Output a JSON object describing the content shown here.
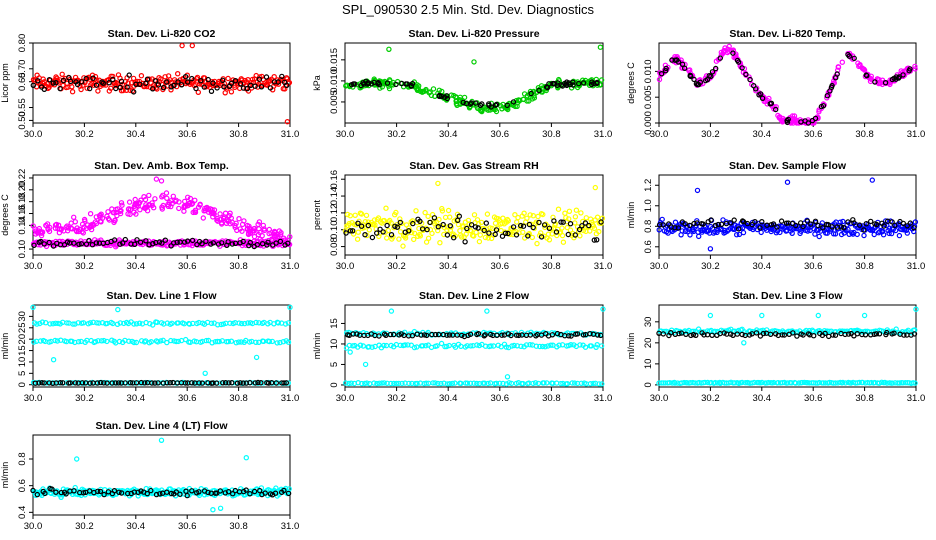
{
  "title": "SPL_090530  2.5 Min. Std. Dev. Diagnostics",
  "chart_data": [
    {
      "type": "scatter",
      "title": "Stan. Dev. Li-820 CO2",
      "ylabel": "Licor ppm",
      "xlim": [
        30.0,
        31.0
      ],
      "ylim": [
        0.49,
        0.8
      ],
      "xticks": [
        30.0,
        30.2,
        30.4,
        30.6,
        30.8,
        31.0
      ],
      "yticks": [
        0.5,
        0.55,
        0.65,
        0.7,
        0.8
      ],
      "ytick_labels": [
        "0.50",
        "0.55",
        "0.65",
        "0.70",
        "0.80"
      ],
      "color": "#ff0000",
      "series": [
        {
          "color": "#ff0000",
          "bands": [
            {
              "center": 0.645,
              "spread": 0.045
            }
          ],
          "outliers": [
            [
              30.58,
              0.79
            ],
            [
              30.62,
              0.79
            ],
            [
              30.99,
              0.495
            ]
          ]
        },
        {
          "color": "#000000",
          "bands": [
            {
              "center": 0.645,
              "spread": 0.04
            }
          ]
        }
      ]
    },
    {
      "type": "scatter",
      "title": "Stan. Dev. Li-820 Pressure",
      "ylabel": "kPa",
      "xlim": [
        30.0,
        31.0
      ],
      "ylim": [
        0.0,
        0.019
      ],
      "xticks": [
        30.0,
        30.2,
        30.4,
        30.6,
        30.8,
        31.0
      ],
      "yticks": [
        0.005,
        0.01,
        0.015
      ],
      "ytick_labels": [
        "0.005",
        "0.010",
        "0.015"
      ],
      "color": "#00cc00",
      "series": [
        {
          "color": "#00cc00",
          "curve": [
            [
              30.0,
              0.0085
            ],
            [
              30.1,
              0.0095
            ],
            [
              30.25,
              0.009
            ],
            [
              30.35,
              0.007
            ],
            [
              30.45,
              0.005
            ],
            [
              30.55,
              0.0035
            ],
            [
              30.62,
              0.0035
            ],
            [
              30.7,
              0.006
            ],
            [
              30.8,
              0.009
            ],
            [
              30.9,
              0.0095
            ],
            [
              31.0,
              0.0095
            ]
          ],
          "spread": 0.0015,
          "outliers": [
            [
              30.17,
              0.0175
            ],
            [
              30.5,
              0.0145
            ],
            [
              30.99,
              0.018
            ]
          ]
        },
        {
          "color": "#000000",
          "curve": [
            [
              30.0,
              0.0085
            ],
            [
              30.1,
              0.0095
            ],
            [
              30.25,
              0.009
            ],
            [
              30.35,
              0.007
            ],
            [
              30.45,
              0.005
            ],
            [
              30.55,
              0.004
            ],
            [
              30.62,
              0.004
            ],
            [
              30.7,
              0.006
            ],
            [
              30.8,
              0.009
            ],
            [
              30.9,
              0.0095
            ],
            [
              31.0,
              0.0095
            ]
          ],
          "spread": 0.0008
        }
      ]
    },
    {
      "type": "scatter",
      "title": "Stan. Dev. Li-820 Temp.",
      "ylabel": "degrees C",
      "xlim": [
        30.0,
        31.0
      ],
      "ylim": [
        0.0,
        0.0155
      ],
      "xticks": [
        30.0,
        30.2,
        30.4,
        30.6,
        30.8,
        31.0
      ],
      "yticks": [
        0.0,
        0.005,
        0.01
      ],
      "ytick_labels": [
        "0.000",
        "0.005",
        "0.010"
      ],
      "color": "#ff00ff",
      "series": [
        {
          "color": "#ff00ff",
          "curve": [
            [
              30.0,
              0.009
            ],
            [
              30.06,
              0.0125
            ],
            [
              30.1,
              0.011
            ],
            [
              30.15,
              0.0075
            ],
            [
              30.2,
              0.009
            ],
            [
              30.25,
              0.0135
            ],
            [
              30.28,
              0.0145
            ],
            [
              30.32,
              0.011
            ],
            [
              30.38,
              0.006
            ],
            [
              30.45,
              0.003
            ],
            [
              30.48,
              0.0005
            ],
            [
              30.6,
              0.0
            ],
            [
              30.63,
              0.0025
            ],
            [
              30.68,
              0.008
            ],
            [
              30.72,
              0.0135
            ],
            [
              30.76,
              0.0125
            ],
            [
              30.82,
              0.0085
            ],
            [
              30.88,
              0.0075
            ],
            [
              30.95,
              0.0095
            ],
            [
              31.0,
              0.011
            ]
          ],
          "spread": 0.0012
        },
        {
          "color": "#000000",
          "curve": [
            [
              30.0,
              0.009
            ],
            [
              30.06,
              0.0125
            ],
            [
              30.1,
              0.011
            ],
            [
              30.15,
              0.0075
            ],
            [
              30.2,
              0.009
            ],
            [
              30.25,
              0.0135
            ],
            [
              30.28,
              0.0145
            ],
            [
              30.32,
              0.011
            ],
            [
              30.38,
              0.006
            ],
            [
              30.45,
              0.003
            ],
            [
              30.48,
              0.0005
            ],
            [
              30.6,
              0.0
            ],
            [
              30.63,
              0.0025
            ],
            [
              30.68,
              0.008
            ],
            [
              30.72,
              0.0135
            ],
            [
              30.76,
              0.0125
            ],
            [
              30.82,
              0.0085
            ],
            [
              30.88,
              0.0075
            ],
            [
              30.95,
              0.0095
            ],
            [
              31.0,
              0.011
            ]
          ],
          "spread": 0.0006
        }
      ]
    },
    {
      "type": "scatter",
      "title": "Stan. Dev. Amb. Box Temp.",
      "ylabel": "degrees C",
      "xlim": [
        30.0,
        31.0
      ],
      "ylim": [
        0.09,
        0.225
      ],
      "xticks": [
        30.0,
        30.2,
        30.4,
        30.6,
        30.8,
        31.0
      ],
      "yticks": [
        0.1,
        0.14,
        0.16,
        0.18,
        0.2,
        0.22
      ],
      "ytick_labels": [
        "0.10",
        "0.14",
        "0.16",
        "0.18",
        "0.20",
        "0.22"
      ],
      "color": "#ff00ff",
      "series": [
        {
          "color": "#ff00ff",
          "curve": [
            [
              30.0,
              0.13
            ],
            [
              30.2,
              0.14
            ],
            [
              30.35,
              0.165
            ],
            [
              30.48,
              0.18
            ],
            [
              30.6,
              0.175
            ],
            [
              30.75,
              0.15
            ],
            [
              30.9,
              0.13
            ],
            [
              31.0,
              0.115
            ]
          ],
          "spread": 0.022,
          "outliers": [
            [
              30.48,
              0.218
            ],
            [
              30.5,
              0.215
            ]
          ]
        },
        {
          "color": "#ff00ff",
          "bands": [
            {
              "center": 0.11,
              "spread": 0.007
            }
          ]
        },
        {
          "color": "#000000",
          "bands": [
            {
              "center": 0.11,
              "spread": 0.008
            }
          ]
        }
      ]
    },
    {
      "type": "scatter",
      "title": "Stan. Dev. Gas Stream RH",
      "ylabel": "percent",
      "xlim": [
        30.0,
        31.0
      ],
      "ylim": [
        0.07,
        0.165
      ],
      "xticks": [
        30.0,
        30.2,
        30.4,
        30.6,
        30.8,
        31.0
      ],
      "yticks": [
        0.08,
        0.1,
        0.12,
        0.14,
        0.16
      ],
      "ytick_labels": [
        "0.08",
        "0.10",
        "0.12",
        "0.14",
        "0.16"
      ],
      "color": "#ffff00",
      "series": [
        {
          "color": "#ffff00",
          "bands": [
            {
              "center": 0.105,
              "spread": 0.028
            }
          ],
          "outliers": [
            [
              30.36,
              0.155
            ],
            [
              30.97,
              0.15
            ]
          ]
        },
        {
          "color": "#000000",
          "bands": [
            {
              "center": 0.1,
              "spread": 0.02
            }
          ]
        }
      ]
    },
    {
      "type": "scatter",
      "title": "Stan. Dev. Sample Flow",
      "ylabel": "ml/min",
      "xlim": [
        30.0,
        31.0
      ],
      "ylim": [
        0.52,
        1.3
      ],
      "xticks": [
        30.0,
        30.2,
        30.4,
        30.6,
        30.8,
        31.0
      ],
      "yticks": [
        0.6,
        0.8,
        1.0,
        1.2
      ],
      "ytick_labels": [
        "0.6",
        "0.8",
        "1.0",
        "1.2"
      ],
      "color": "#0000ff",
      "series": [
        {
          "color": "#0000ff",
          "bands": [
            {
              "center": 0.78,
              "spread": 0.1
            }
          ],
          "outliers": [
            [
              30.15,
              1.15
            ],
            [
              30.5,
              1.23
            ],
            [
              30.83,
              1.25
            ],
            [
              30.2,
              0.58
            ]
          ]
        },
        {
          "color": "#000000",
          "bands": [
            {
              "center": 0.82,
              "spread": 0.08
            }
          ]
        }
      ]
    },
    {
      "type": "scatter",
      "title": "Stan. Dev. Line 1 Flow",
      "ylabel": "ml/min",
      "xlim": [
        30.0,
        31.0
      ],
      "ylim": [
        -1,
        35
      ],
      "xticks": [
        30.0,
        30.2,
        30.4,
        30.6,
        30.8,
        31.0
      ],
      "yticks": [
        0,
        5,
        10,
        15,
        20,
        25,
        30
      ],
      "ytick_labels": [
        "0",
        "5",
        "10",
        "15",
        "20",
        "25",
        "30"
      ],
      "color": "#00ffff",
      "series": [
        {
          "color": "#00ffff",
          "bands": [
            {
              "center": 27,
              "spread": 0.9
            },
            {
              "center": 19,
              "spread": 1.0
            },
            {
              "center": 0.8,
              "spread": 0.3
            }
          ],
          "outliers": [
            [
              30.0,
              34
            ],
            [
              30.33,
              33
            ],
            [
              31.0,
              34
            ],
            [
              30.08,
              11
            ],
            [
              30.67,
              5
            ],
            [
              30.87,
              12
            ]
          ]
        },
        {
          "color": "#000000",
          "bands": [
            {
              "center": 0.8,
              "spread": 0.2
            }
          ]
        }
      ]
    },
    {
      "type": "scatter",
      "title": "Stan. Dev. Line 2 Flow",
      "ylabel": "ml/min",
      "xlim": [
        30.0,
        31.0
      ],
      "ylim": [
        -0.5,
        19.5
      ],
      "xticks": [
        30.0,
        30.2,
        30.4,
        30.6,
        30.8,
        31.0
      ],
      "yticks": [
        0,
        5,
        10,
        15
      ],
      "ytick_labels": [
        "0",
        "5",
        "10",
        "15"
      ],
      "color": "#00ffff",
      "series": [
        {
          "color": "#00ffff",
          "bands": [
            {
              "center": 12.5,
              "spread": 0.6
            },
            {
              "center": 9.5,
              "spread": 0.7
            },
            {
              "center": 0.4,
              "spread": 0.2
            }
          ],
          "outliers": [
            [
              30.18,
              18
            ],
            [
              30.55,
              18
            ],
            [
              31.0,
              18.5
            ],
            [
              30.02,
              8
            ],
            [
              30.08,
              5
            ],
            [
              30.63,
              2
            ]
          ]
        },
        {
          "color": "#000000",
          "bands": [
            {
              "center": 12.2,
              "spread": 0.5
            }
          ]
        }
      ]
    },
    {
      "type": "scatter",
      "title": "Stan. Dev. Line 3 Flow",
      "ylabel": "ml/min",
      "xlim": [
        30.0,
        31.0
      ],
      "ylim": [
        -1,
        38
      ],
      "xticks": [
        30.0,
        30.2,
        30.4,
        30.6,
        30.8,
        31.0
      ],
      "yticks": [
        0,
        10,
        20,
        30
      ],
      "ytick_labels": [
        "0",
        "10",
        "20",
        "30"
      ],
      "color": "#00ffff",
      "series": [
        {
          "color": "#00ffff",
          "bands": [
            {
              "center": 25.5,
              "spread": 1.2
            },
            {
              "center": 1.0,
              "spread": 0.3
            }
          ],
          "outliers": [
            [
              30.2,
              33
            ],
            [
              30.4,
              33
            ],
            [
              30.62,
              33
            ],
            [
              30.8,
              33
            ],
            [
              31.0,
              36
            ],
            [
              30.33,
              20
            ]
          ]
        },
        {
          "color": "#000000",
          "bands": [
            {
              "center": 24,
              "spread": 1.3
            }
          ]
        }
      ]
    },
    {
      "type": "scatter",
      "title": "Stan. Dev. Line 4 (LT) Flow",
      "ylabel": "ml/min",
      "xlim": [
        30.0,
        31.0
      ],
      "ylim": [
        0.38,
        0.98
      ],
      "xticks": [
        30.0,
        30.2,
        30.4,
        30.6,
        30.8,
        31.0
      ],
      "yticks": [
        0.4,
        0.6,
        0.8
      ],
      "ytick_labels": [
        "0.4",
        "0.6",
        "0.8"
      ],
      "color": "#00ffff",
      "series": [
        {
          "color": "#00ffff",
          "bands": [
            {
              "center": 0.55,
              "spread": 0.04
            }
          ],
          "outliers": [
            [
              30.17,
              0.8
            ],
            [
              30.5,
              0.94
            ],
            [
              30.83,
              0.81
            ],
            [
              30.7,
              0.42
            ],
            [
              30.73,
              0.43
            ]
          ]
        },
        {
          "color": "#000000",
          "bands": [
            {
              "center": 0.55,
              "spread": 0.035
            }
          ]
        }
      ]
    }
  ]
}
